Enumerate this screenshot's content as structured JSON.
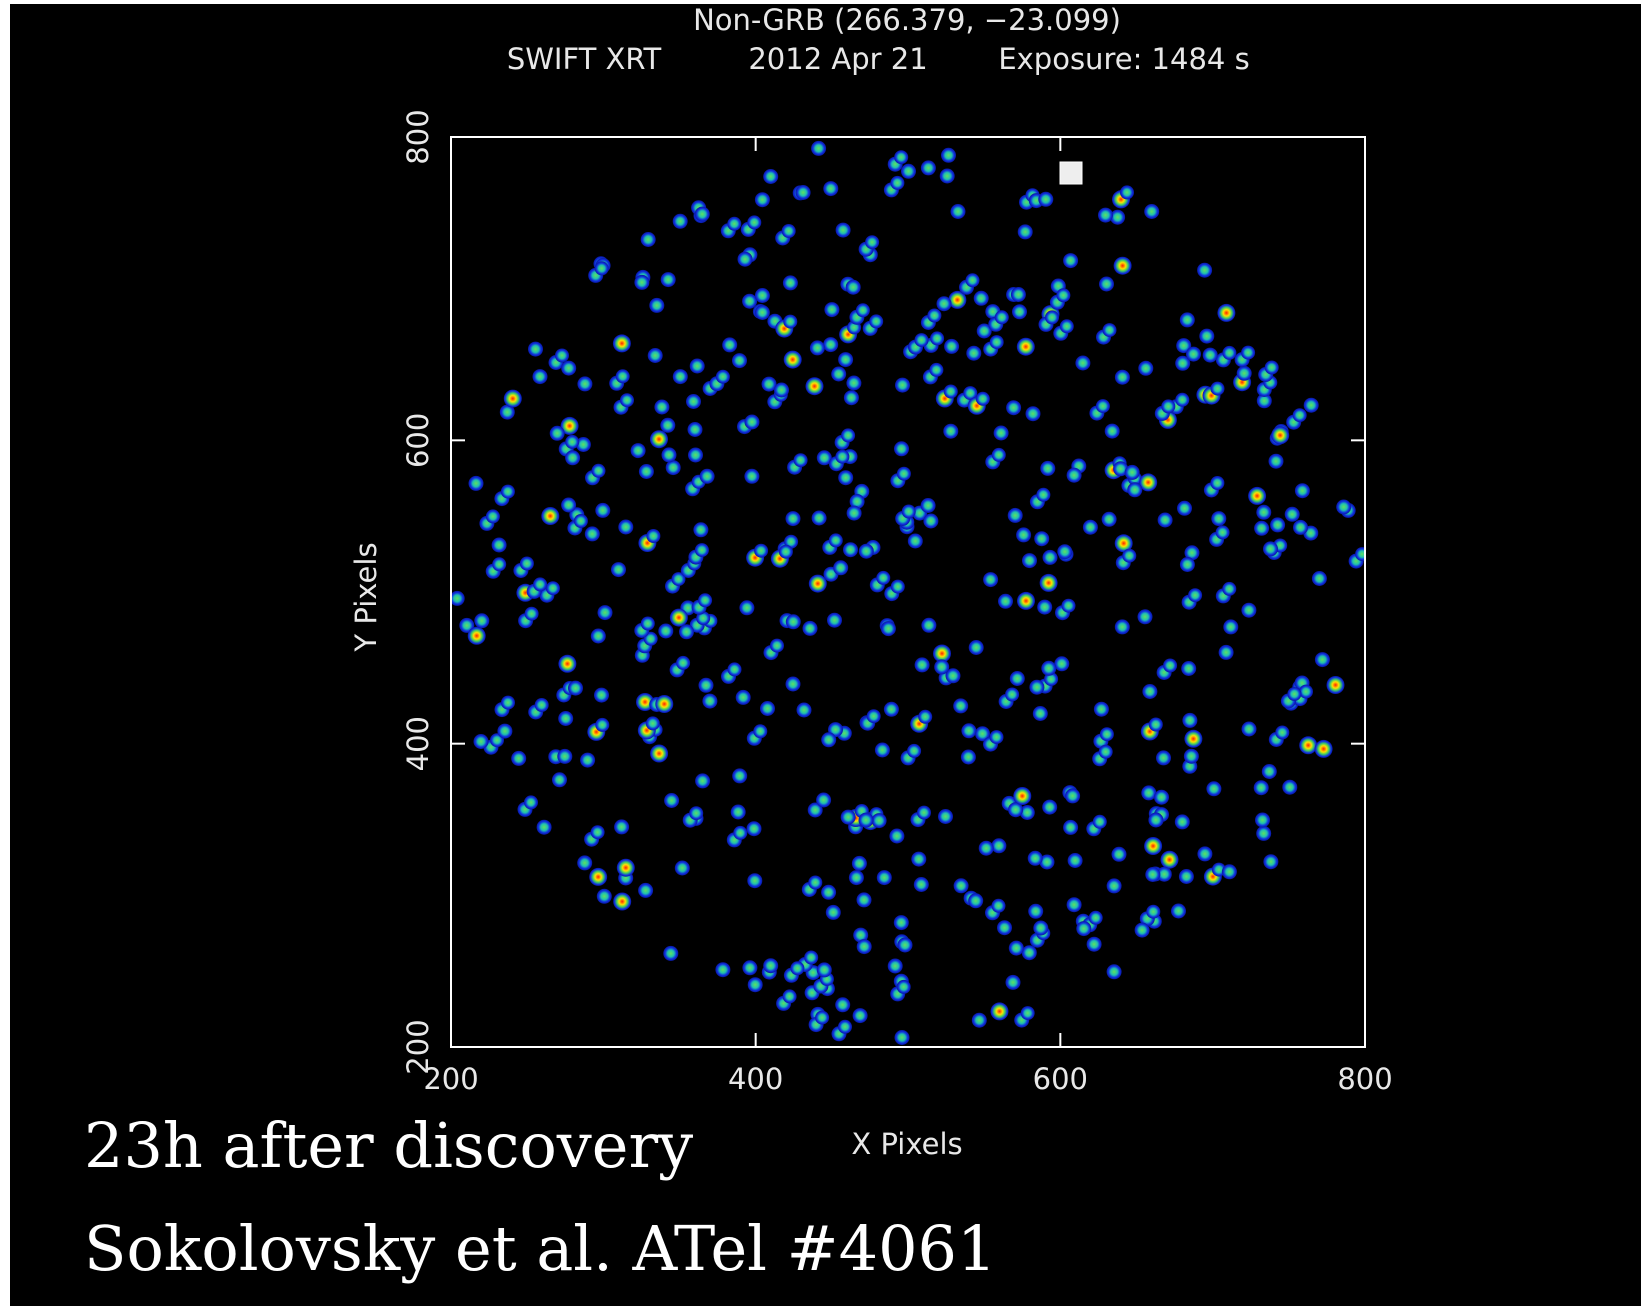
{
  "chart_data": {
    "type": "image",
    "title": "Non-GRB (266.379, −23.099)",
    "subtitle": {
      "instrument": "SWIFT XRT",
      "date": "2012 Apr 21",
      "exposure": "Exposure: 1484 s"
    },
    "xlabel": "X Pixels",
    "ylabel": "Y Pixels",
    "xlim": [
      200,
      800
    ],
    "ylim": [
      200,
      800
    ],
    "xticks": [
      200,
      400,
      600,
      800
    ],
    "yticks": [
      200,
      400,
      600,
      800
    ]
  },
  "captions": [
    "23h after discovery",
    "Sokolovsky et al.  ATel #4061"
  ]
}
